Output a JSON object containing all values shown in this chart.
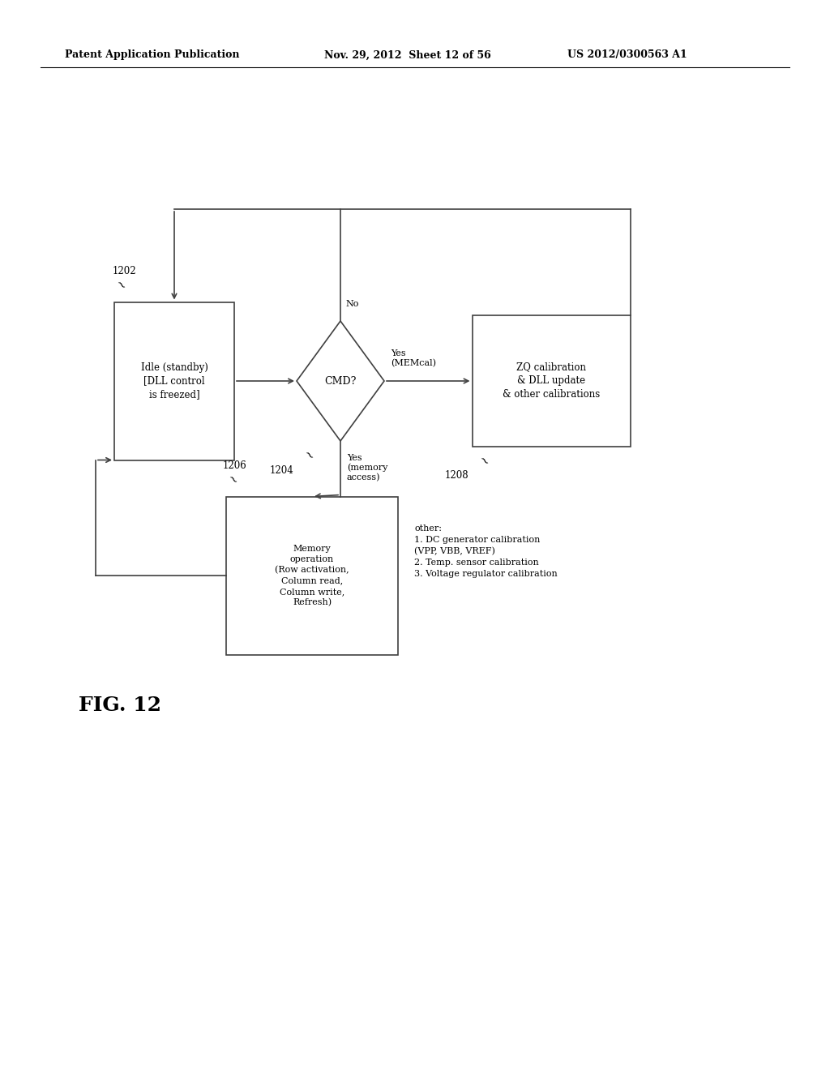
{
  "bg_color": "#ffffff",
  "header_left": "Patent Application Publication",
  "header_mid": "Nov. 29, 2012  Sheet 12 of 56",
  "header_right": "US 2012/0300563 A1",
  "fig_label": "FIG. 12",
  "idle_label": "Idle (standby)\n[DLL control\nis freezed]",
  "idle_id": "1202",
  "diamond_label": "CMD?",
  "diamond_id": "1204",
  "zq_label": "ZQ calibration\n& DLL update\n& other calibrations",
  "zq_id": "1208",
  "memory_label": "Memory\noperation\n(Row activation,\nColumn read,\nColumn write,\nRefresh)",
  "memory_id": "1206",
  "no_label": "No",
  "yes_memcal_label": "Yes\n(MEMcal)",
  "yes_memory_label": "Yes\n(memory\naccess)",
  "other_text": "other:\n1. DC generator calibration\n(VPP, VBB, VREF)\n2. Temp. sensor calibration\n3. Voltage regulator calibration"
}
